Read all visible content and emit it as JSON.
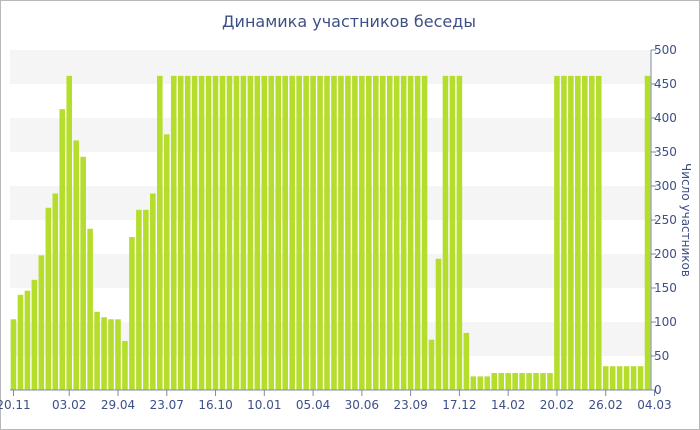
{
  "colors": {
    "bar": "#b5dd2b",
    "band": "#f5f5f5",
    "axis": "#7a8aaa",
    "text": "#3d4f86"
  },
  "chart_data": {
    "type": "bar",
    "title": "Динамика участников беседы",
    "xlabel": "",
    "ylabel": "Число участников",
    "ylim": [
      0,
      500
    ],
    "yticks": [
      0,
      50,
      100,
      150,
      200,
      250,
      300,
      350,
      400,
      450,
      500
    ],
    "y_axis_side": "right",
    "grid": "alternating horizontal bands",
    "legend": "none",
    "xtick_labels": [
      {
        "label": "20.11",
        "index": 0
      },
      {
        "label": "03.02",
        "index": 8
      },
      {
        "label": "29.04",
        "index": 15
      },
      {
        "label": "23.07",
        "index": 22
      },
      {
        "label": "16.10",
        "index": 29
      },
      {
        "label": "10.01",
        "index": 36
      },
      {
        "label": "05.04",
        "index": 43
      },
      {
        "label": "30.06",
        "index": 50
      },
      {
        "label": "23.09",
        "index": 57
      },
      {
        "label": "17.12",
        "index": 64
      },
      {
        "label": "14.02",
        "index": 71
      },
      {
        "label": "20.02",
        "index": 78
      },
      {
        "label": "26.02",
        "index": 85
      },
      {
        "label": "04.03",
        "index": 92
      }
    ],
    "values": [
      104,
      140,
      146,
      162,
      198,
      268,
      289,
      413,
      462,
      367,
      343,
      237,
      115,
      107,
      104,
      104,
      72,
      225,
      265,
      265,
      289,
      462,
      376,
      462,
      462,
      462,
      462,
      462,
      462,
      462,
      462,
      462,
      462,
      462,
      462,
      462,
      462,
      462,
      462,
      462,
      462,
      462,
      462,
      462,
      462,
      462,
      462,
      462,
      462,
      462,
      462,
      462,
      462,
      462,
      462,
      462,
      462,
      462,
      462,
      462,
      74,
      193,
      462,
      462,
      462,
      84,
      20,
      20,
      20,
      25,
      25,
      25,
      25,
      25,
      25,
      25,
      25,
      25,
      462,
      462,
      462,
      462,
      462,
      462,
      462,
      35,
      35,
      35,
      35,
      35,
      35,
      462
    ]
  }
}
